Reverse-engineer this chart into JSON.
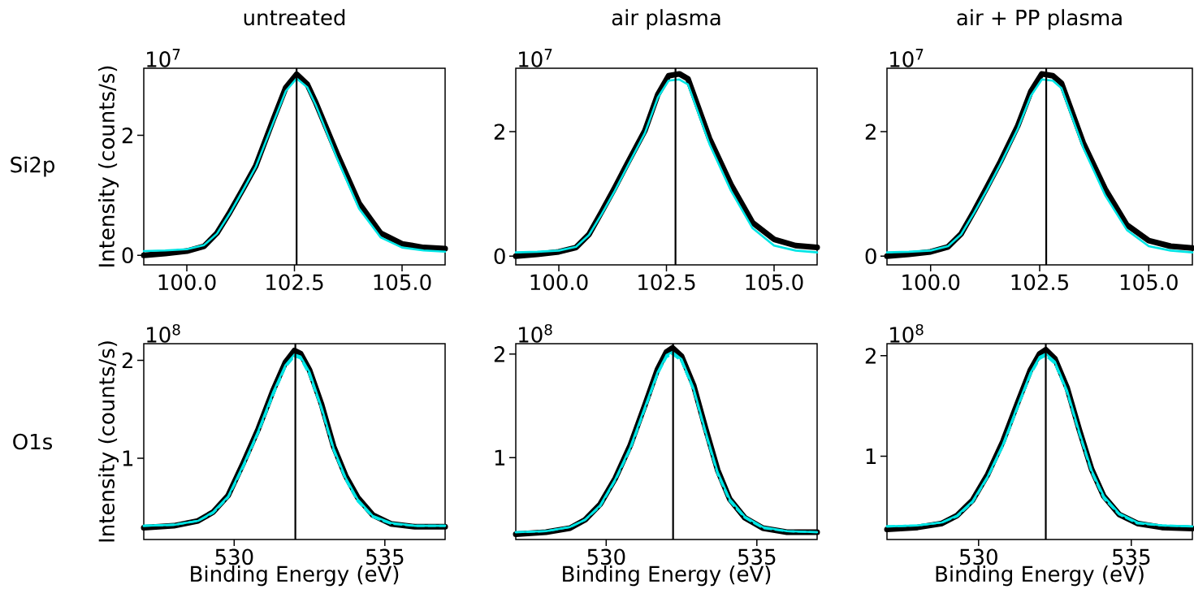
{
  "chart_data": [
    {
      "type": "line",
      "title": "untreated",
      "ylabel": "Intensity (counts/s)",
      "annotations": [
        "10$^{7}$",
        "Si2p"
      ],
      "xlim": [
        99.0,
        106.0
      ],
      "ylim": [
        -0.16,
        3.12
      ],
      "xticks": [
        {
          "value": 100,
          "label": "100.0"
        },
        {
          "value": 102.5,
          "label": "102.5"
        },
        {
          "value": 105,
          "label": "105.0"
        }
      ],
      "yticks": [
        0,
        2
      ],
      "x": [
        99.0,
        99.5,
        100.0,
        100.4,
        100.7,
        101.0,
        101.3,
        101.6,
        102.0,
        102.3,
        102.55,
        102.8,
        103.0,
        103.5,
        104.0,
        104.5,
        105.0,
        105.5,
        106.0
      ],
      "series": [
        {
          "color": "#000000",
          "values": [
            0.0,
            0.03,
            0.07,
            0.15,
            0.37,
            0.72,
            1.1,
            1.49,
            2.25,
            2.8,
            3.02,
            2.85,
            2.54,
            1.68,
            0.87,
            0.37,
            0.19,
            0.13,
            0.11
          ]
        },
        {
          "color": "#00e5e5",
          "values": [
            0.07,
            0.08,
            0.1,
            0.17,
            0.36,
            0.7,
            1.08,
            1.47,
            2.2,
            2.74,
            2.95,
            2.8,
            2.5,
            1.6,
            0.78,
            0.3,
            0.13,
            0.08,
            0.06
          ]
        }
      ],
      "ref_lines": [
        {
          "axis": "x",
          "value": 102.55,
          "color": "#000000"
        }
      ]
    },
    {
      "type": "line",
      "title": "air plasma",
      "annotations": [
        "10$^{7}$"
      ],
      "xlim": [
        99.0,
        106.0
      ],
      "ylim": [
        -0.14,
        3.02
      ],
      "xticks": [
        {
          "value": 100,
          "label": "100.0"
        },
        {
          "value": 102.5,
          "label": "102.5"
        },
        {
          "value": 105,
          "label": "105.0"
        }
      ],
      "yticks": [
        0,
        2
      ],
      "x": [
        99.0,
        99.5,
        100.0,
        100.4,
        100.7,
        101.0,
        101.3,
        101.6,
        102.0,
        102.3,
        102.55,
        102.8,
        103.0,
        103.5,
        104.0,
        104.5,
        105.0,
        105.5,
        106.0
      ],
      "series": [
        {
          "color": "#000000",
          "values": [
            0.0,
            0.03,
            0.07,
            0.14,
            0.35,
            0.72,
            1.1,
            1.5,
            2.02,
            2.6,
            2.9,
            2.93,
            2.85,
            1.89,
            1.15,
            0.54,
            0.27,
            0.17,
            0.14
          ]
        },
        {
          "color": "#00e5e5",
          "values": [
            0.06,
            0.07,
            0.09,
            0.15,
            0.34,
            0.68,
            1.05,
            1.45,
            1.98,
            2.55,
            2.82,
            2.84,
            2.76,
            1.8,
            1.05,
            0.45,
            0.17,
            0.09,
            0.06
          ]
        }
      ],
      "ref_lines": [
        {
          "axis": "x",
          "value": 102.71,
          "color": "#000000"
        }
      ]
    },
    {
      "type": "line",
      "title": "air + PP plasma",
      "annotations": [
        "10$^{7}$"
      ],
      "xlim": [
        99.0,
        106.0
      ],
      "ylim": [
        -0.14,
        3.02
      ],
      "xticks": [
        {
          "value": 100,
          "label": "100.0"
        },
        {
          "value": 102.5,
          "label": "102.5"
        },
        {
          "value": 105,
          "label": "105.0"
        }
      ],
      "yticks": [
        0,
        2
      ],
      "x": [
        99.0,
        99.5,
        100.0,
        100.4,
        100.7,
        101.0,
        101.3,
        101.6,
        102.0,
        102.3,
        102.55,
        102.8,
        103.0,
        103.5,
        104.0,
        104.5,
        105.0,
        105.5,
        106.0
      ],
      "series": [
        {
          "color": "#000000",
          "values": [
            0.0,
            0.03,
            0.07,
            0.15,
            0.36,
            0.73,
            1.12,
            1.52,
            2.1,
            2.65,
            2.93,
            2.9,
            2.78,
            1.82,
            1.08,
            0.5,
            0.25,
            0.16,
            0.13
          ]
        },
        {
          "color": "#00e5e5",
          "values": [
            0.06,
            0.07,
            0.09,
            0.16,
            0.35,
            0.7,
            1.08,
            1.48,
            2.05,
            2.58,
            2.84,
            2.82,
            2.7,
            1.74,
            0.98,
            0.42,
            0.16,
            0.09,
            0.06
          ]
        }
      ],
      "ref_lines": [
        {
          "axis": "x",
          "value": 102.65,
          "color": "#000000"
        }
      ]
    },
    {
      "type": "line",
      "ylabel": "Intensity (counts/s)",
      "xlabel": "Binding Energy (eV)",
      "annotations": [
        "10$^{8}$",
        "O1s"
      ],
      "xlim": [
        527.0,
        537.0
      ],
      "ylim": [
        0.17,
        2.17
      ],
      "xticks": [
        530,
        535
      ],
      "yticks": [
        1,
        2
      ],
      "x": [
        527,
        528,
        528.8,
        529.3,
        529.8,
        530.3,
        530.8,
        531.3,
        531.7,
        532.0,
        532.2,
        532.5,
        532.9,
        533.3,
        533.7,
        534.1,
        534.6,
        535.2,
        536.0,
        537
      ],
      "series": [
        {
          "color": "#000000",
          "values": [
            0.29,
            0.31,
            0.36,
            0.45,
            0.62,
            0.95,
            1.3,
            1.7,
            1.98,
            2.1,
            2.07,
            1.9,
            1.55,
            1.12,
            0.82,
            0.6,
            0.42,
            0.33,
            0.3,
            0.3
          ]
        },
        {
          "color": "#00e5e5",
          "values": [
            0.31,
            0.32,
            0.36,
            0.45,
            0.61,
            0.93,
            1.28,
            1.68,
            1.95,
            2.06,
            2.04,
            1.88,
            1.52,
            1.1,
            0.8,
            0.58,
            0.41,
            0.34,
            0.31,
            0.31
          ]
        },
        {
          "color": "#00e5e5",
          "line_style": "dashed",
          "values": [
            0.31,
            0.32,
            0.36,
            0.44,
            0.6,
            0.91,
            1.26,
            1.65,
            1.93,
            2.04,
            2.02,
            1.85,
            1.5,
            1.08,
            0.78,
            0.56,
            0.4,
            0.33,
            0.31,
            0.31
          ]
        }
      ],
      "ref_lines": [
        {
          "axis": "x",
          "value": 532.03,
          "color": "#000000"
        }
      ]
    },
    {
      "type": "line",
      "xlabel": "Binding Energy (eV)",
      "annotations": [
        "10$^{8}$"
      ],
      "xlim": [
        527.0,
        537.0
      ],
      "ylim": [
        0.21,
        2.1
      ],
      "xticks": [
        530,
        535
      ],
      "yticks": [
        1,
        2
      ],
      "x": [
        527,
        528,
        528.8,
        529.3,
        529.8,
        530.3,
        530.8,
        531.3,
        531.7,
        532.0,
        532.2,
        532.5,
        532.9,
        533.3,
        533.7,
        534.1,
        534.6,
        535.2,
        536.0,
        537
      ],
      "series": [
        {
          "color": "#000000",
          "values": [
            0.26,
            0.28,
            0.32,
            0.4,
            0.55,
            0.8,
            1.12,
            1.52,
            1.85,
            2.02,
            2.06,
            1.98,
            1.7,
            1.28,
            0.88,
            0.6,
            0.42,
            0.32,
            0.28,
            0.28
          ]
        },
        {
          "color": "#00e5e5",
          "values": [
            0.28,
            0.29,
            0.33,
            0.4,
            0.54,
            0.79,
            1.1,
            1.5,
            1.82,
            1.99,
            2.02,
            1.95,
            1.67,
            1.25,
            0.86,
            0.6,
            0.43,
            0.33,
            0.29,
            0.28
          ]
        },
        {
          "color": "#00e5e5",
          "line_style": "dashed",
          "values": [
            0.28,
            0.29,
            0.33,
            0.4,
            0.53,
            0.78,
            1.08,
            1.48,
            1.8,
            1.97,
            2.0,
            1.93,
            1.65,
            1.23,
            0.84,
            0.58,
            0.42,
            0.32,
            0.29,
            0.28
          ]
        }
      ],
      "ref_lines": [
        {
          "axis": "x",
          "value": 532.22,
          "color": "#000000"
        }
      ]
    },
    {
      "type": "line",
      "xlabel": "Binding Energy (eV)",
      "annotations": [
        "10$^{8}$"
      ],
      "xlim": [
        527.0,
        537.0
      ],
      "ylim": [
        0.17,
        2.12
      ],
      "xticks": [
        530,
        535
      ],
      "yticks": [
        1,
        2
      ],
      "x": [
        527,
        528,
        528.8,
        529.3,
        529.8,
        530.3,
        530.8,
        531.3,
        531.7,
        532.0,
        532.2,
        532.5,
        532.9,
        533.3,
        533.7,
        534.1,
        534.6,
        535.2,
        536.0,
        537
      ],
      "series": [
        {
          "color": "#000000",
          "values": [
            0.27,
            0.29,
            0.33,
            0.41,
            0.56,
            0.82,
            1.15,
            1.55,
            1.86,
            2.02,
            2.06,
            1.97,
            1.68,
            1.26,
            0.87,
            0.6,
            0.42,
            0.33,
            0.29,
            0.28
          ]
        },
        {
          "color": "#00e5e5",
          "values": [
            0.3,
            0.31,
            0.34,
            0.41,
            0.55,
            0.8,
            1.12,
            1.52,
            1.83,
            1.99,
            2.02,
            1.94,
            1.65,
            1.24,
            0.86,
            0.6,
            0.43,
            0.34,
            0.31,
            0.3
          ]
        },
        {
          "color": "#00e5e5",
          "line_style": "dashed",
          "values": [
            0.3,
            0.31,
            0.34,
            0.4,
            0.54,
            0.79,
            1.1,
            1.5,
            1.81,
            1.97,
            2.0,
            1.92,
            1.63,
            1.22,
            0.84,
            0.58,
            0.42,
            0.33,
            0.31,
            0.3
          ]
        }
      ],
      "ref_lines": [
        {
          "axis": "x",
          "value": 532.2,
          "color": "#000000"
        }
      ]
    }
  ]
}
